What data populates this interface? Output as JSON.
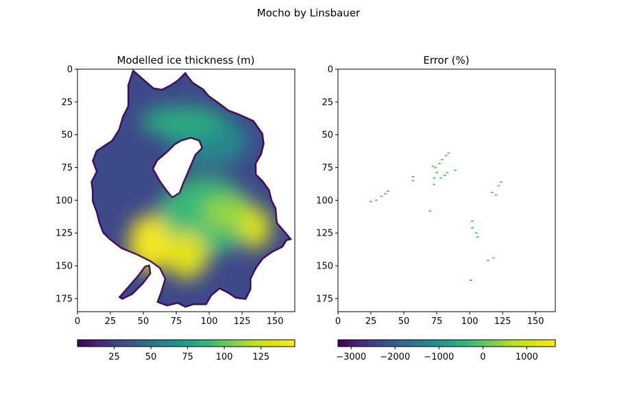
{
  "figure": {
    "suptitle": "Mocho by Linsbauer"
  },
  "chart_data": [
    {
      "type": "heatmap",
      "title": "Modelled ice thickness (m)",
      "xlabel": "",
      "ylabel": "",
      "x_ticks": [
        0,
        25,
        50,
        75,
        100,
        125,
        150
      ],
      "y_ticks": [
        0,
        25,
        50,
        75,
        100,
        125,
        150,
        175
      ],
      "xlim": [
        0,
        165
      ],
      "ylim": [
        185,
        0
      ],
      "colormap": "viridis",
      "colorbar": {
        "orientation": "horizontal",
        "vmin": 0,
        "vmax": 148,
        "ticks": [
          25,
          50,
          75,
          100,
          125
        ]
      },
      "outline": [
        [
          42,
          0
        ],
        [
          38,
          12
        ],
        [
          38,
          28
        ],
        [
          34,
          36
        ],
        [
          31,
          46
        ],
        [
          26,
          54
        ],
        [
          20,
          58
        ],
        [
          14,
          62
        ],
        [
          11,
          70
        ],
        [
          14,
          78
        ],
        [
          10,
          86
        ],
        [
          11,
          93
        ],
        [
          11,
          101
        ],
        [
          14,
          109
        ],
        [
          16,
          117
        ],
        [
          19,
          125
        ],
        [
          24,
          130
        ],
        [
          33,
          137
        ],
        [
          45,
          142
        ],
        [
          55,
          147
        ],
        [
          62,
          152
        ],
        [
          66,
          160
        ],
        [
          63,
          170
        ],
        [
          60,
          178
        ],
        [
          68,
          181
        ],
        [
          76,
          179
        ],
        [
          82,
          182
        ],
        [
          88,
          180
        ],
        [
          98,
          180
        ],
        [
          102,
          173
        ],
        [
          108,
          168
        ],
        [
          114,
          171
        ],
        [
          120,
          175
        ],
        [
          128,
          176
        ],
        [
          132,
          168
        ],
        [
          132,
          160
        ],
        [
          136,
          152
        ],
        [
          141,
          145
        ],
        [
          148,
          140
        ],
        [
          156,
          136
        ],
        [
          159,
          131
        ],
        [
          163,
          130
        ],
        [
          158,
          124
        ],
        [
          152,
          117
        ],
        [
          151,
          106
        ],
        [
          148,
          100
        ],
        [
          146,
          92
        ],
        [
          141,
          85
        ],
        [
          136,
          80
        ],
        [
          136,
          72
        ],
        [
          140,
          65
        ],
        [
          142,
          57
        ],
        [
          141,
          49
        ],
        [
          134,
          39
        ],
        [
          123,
          34
        ],
        [
          115,
          31
        ],
        [
          107,
          25
        ],
        [
          100,
          20
        ],
        [
          96,
          15
        ],
        [
          88,
          10
        ],
        [
          84,
          5
        ],
        [
          82,
          2
        ],
        [
          76,
          8
        ],
        [
          70,
          12
        ],
        [
          64,
          15
        ],
        [
          58,
          14
        ],
        [
          51,
          8
        ]
      ],
      "holes": [
        [
          [
            58,
            76
          ],
          [
            61,
            70
          ],
          [
            68,
            64
          ],
          [
            74,
            58
          ],
          [
            79,
            55
          ],
          [
            86,
            53
          ],
          [
            92,
            55
          ],
          [
            94,
            60
          ],
          [
            89,
            65
          ],
          [
            86,
            72
          ],
          [
            83,
            79
          ],
          [
            80,
            86
          ],
          [
            77,
            94
          ],
          [
            72,
            97
          ],
          [
            68,
            92
          ],
          [
            63,
            85
          ]
        ],
        [
          [
            31,
            174
          ],
          [
            38,
            166
          ],
          [
            45,
            158
          ],
          [
            51,
            150
          ],
          [
            55,
            149
          ],
          [
            56,
            156
          ],
          [
            50,
            164
          ],
          [
            42,
            172
          ],
          [
            34,
            176
          ]
        ]
      ],
      "hotspots": [
        {
          "x": 55,
          "y": 133,
          "value": 144,
          "rx": 16,
          "ry": 22
        },
        {
          "x": 83,
          "y": 142,
          "value": 135,
          "rx": 16,
          "ry": 18
        },
        {
          "x": 135,
          "y": 121,
          "value": 132,
          "rx": 12,
          "ry": 16
        },
        {
          "x": 115,
          "y": 110,
          "value": 112,
          "rx": 20,
          "ry": 12
        },
        {
          "x": 80,
          "y": 40,
          "value": 82,
          "rx": 32,
          "ry": 12
        },
        {
          "x": 97,
          "y": 112,
          "value": 90,
          "rx": 36,
          "ry": 30
        },
        {
          "x": 100,
          "y": 55,
          "value": 62,
          "rx": 30,
          "ry": 20
        }
      ]
    },
    {
      "type": "heatmap",
      "title": "Error (%)",
      "xlabel": "",
      "ylabel": "",
      "x_ticks": [
        0,
        25,
        50,
        75,
        100,
        125,
        150
      ],
      "y_ticks": [
        0,
        25,
        50,
        75,
        100,
        125,
        150,
        175
      ],
      "xlim": [
        0,
        165
      ],
      "ylim": [
        185,
        0
      ],
      "colormap": "viridis",
      "colorbar": {
        "orientation": "horizontal",
        "vmin": -3300,
        "vmax": 1650,
        "ticks": [
          -3000,
          -2000,
          -1000,
          0,
          1000
        ]
      },
      "points": [
        {
          "x": 84,
          "y": 64,
          "value": 0
        },
        {
          "x": 82,
          "y": 66,
          "value": 0
        },
        {
          "x": 79,
          "y": 69,
          "value": 0
        },
        {
          "x": 77,
          "y": 72,
          "value": 0
        },
        {
          "x": 72,
          "y": 74,
          "value": 0
        },
        {
          "x": 74,
          "y": 75,
          "value": 0
        },
        {
          "x": 75,
          "y": 79,
          "value": 0
        },
        {
          "x": 73,
          "y": 83,
          "value": 0
        },
        {
          "x": 73,
          "y": 88,
          "value": 0
        },
        {
          "x": 78,
          "y": 83,
          "value": 0
        },
        {
          "x": 81,
          "y": 81,
          "value": 0
        },
        {
          "x": 83,
          "y": 79,
          "value": 0
        },
        {
          "x": 89,
          "y": 77,
          "value": 0
        },
        {
          "x": 57,
          "y": 82,
          "value": 0
        },
        {
          "x": 57,
          "y": 85,
          "value": 0
        },
        {
          "x": 38,
          "y": 93,
          "value": 0
        },
        {
          "x": 36,
          "y": 95,
          "value": 0
        },
        {
          "x": 33,
          "y": 97,
          "value": 0
        },
        {
          "x": 29,
          "y": 100,
          "value": 0
        },
        {
          "x": 25,
          "y": 101,
          "value": 0
        },
        {
          "x": 70,
          "y": 108,
          "value": 0
        },
        {
          "x": 102,
          "y": 116,
          "value": 0
        },
        {
          "x": 102,
          "y": 121,
          "value": 0
        },
        {
          "x": 105,
          "y": 125,
          "value": 0
        },
        {
          "x": 106,
          "y": 128,
          "value": 0
        },
        {
          "x": 124,
          "y": 86,
          "value": 0
        },
        {
          "x": 122,
          "y": 89,
          "value": 0
        },
        {
          "x": 117,
          "y": 94,
          "value": 0
        },
        {
          "x": 120,
          "y": 96,
          "value": 0
        },
        {
          "x": 118,
          "y": 144,
          "value": 0
        },
        {
          "x": 114,
          "y": 146,
          "value": 0
        },
        {
          "x": 101,
          "y": 161,
          "value": -300
        }
      ]
    }
  ]
}
